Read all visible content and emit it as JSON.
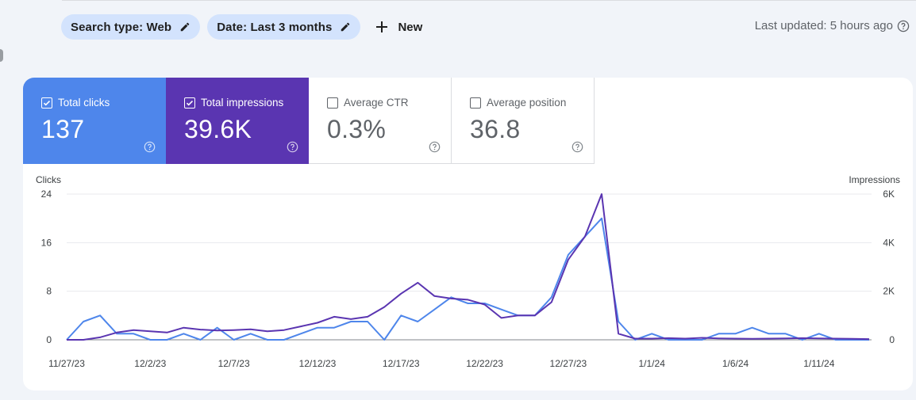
{
  "filters": {
    "search_type": "Search type: Web",
    "date": "Date: Last 3 months",
    "new_label": "New"
  },
  "last_updated": "Last updated: 5 hours ago",
  "metrics": [
    {
      "label": "Total clicks",
      "value": "137",
      "checked": true
    },
    {
      "label": "Total impressions",
      "value": "39.6K",
      "checked": true
    },
    {
      "label": "Average CTR",
      "value": "0.3%",
      "checked": false
    },
    {
      "label": "Average position",
      "value": "36.8",
      "checked": false
    }
  ],
  "colors": {
    "clicks": "#4e86eb",
    "impressions": "#5a35b1",
    "chip_bg": "#d3e3fd"
  },
  "chart_data": {
    "type": "line",
    "ylabel_left": "Clicks",
    "ylabel_right": "Impressions",
    "y_left_ticks": [
      "24",
      "16",
      "8",
      "0"
    ],
    "y_right_ticks": [
      "6K",
      "4K",
      "2K",
      "0"
    ],
    "ylim_left": [
      0,
      24
    ],
    "ylim_right": [
      0,
      6000
    ],
    "x_tick_labels": [
      "11/27/23",
      "12/2/23",
      "12/7/23",
      "12/12/23",
      "12/17/23",
      "12/22/23",
      "12/27/23",
      "1/1/24",
      "1/6/24",
      "1/11/24"
    ],
    "x_tick_index": [
      0,
      5,
      10,
      15,
      20,
      25,
      30,
      35,
      40,
      45
    ],
    "series": [
      {
        "name": "Clicks",
        "axis": "left",
        "values": [
          0,
          3,
          4,
          1,
          1,
          0,
          0,
          1,
          0,
          2,
          0,
          1,
          0,
          0,
          1,
          2,
          2,
          3,
          3,
          0,
          4,
          3,
          5,
          7,
          6,
          6,
          5,
          4,
          4,
          7,
          14,
          17,
          20,
          3,
          0,
          1,
          0,
          0,
          0,
          1,
          1,
          2,
          1,
          1,
          0,
          1,
          0,
          0,
          0
        ]
      },
      {
        "name": "Impressions",
        "axis": "right",
        "values": [
          0,
          0,
          100,
          300,
          400,
          350,
          300,
          500,
          420,
          380,
          400,
          430,
          350,
          400,
          550,
          700,
          950,
          850,
          950,
          1350,
          1900,
          2350,
          1800,
          1700,
          1650,
          1450,
          900,
          1000,
          1000,
          1550,
          3300,
          4250,
          6000,
          250,
          50,
          50,
          70,
          50,
          80,
          60,
          50,
          40,
          50,
          60,
          70,
          60,
          50,
          40,
          30
        ]
      }
    ]
  }
}
